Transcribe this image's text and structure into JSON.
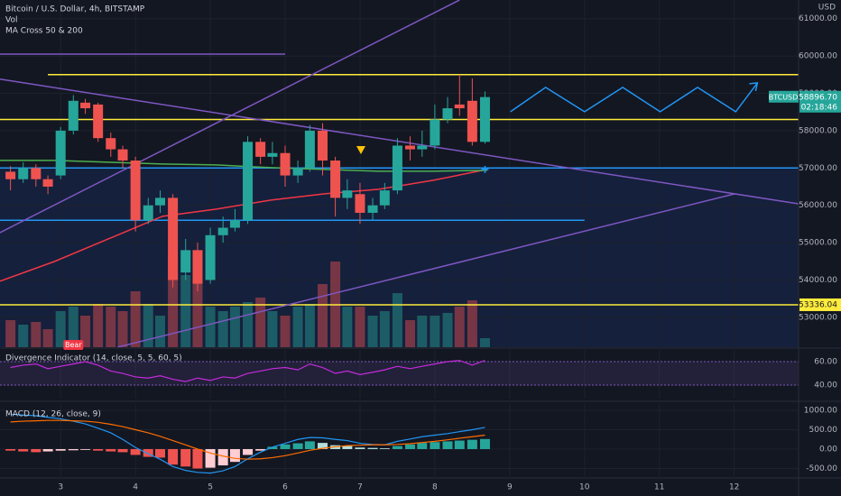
{
  "chart_data": [
    {
      "type": "candlestick",
      "title": "Bitcoin / U.S. Dollar, 4h, BITSTAMP",
      "indicator_label": "MA Cross 50 & 200",
      "currency": "USD",
      "up_color": "#26a69a",
      "down_color": "#ef5350",
      "grid": true,
      "x": [
        2.33,
        2.5,
        2.67,
        2.83,
        3,
        3.17,
        3.33,
        3.5,
        3.67,
        3.83,
        4,
        4.17,
        4.33,
        4.5,
        4.67,
        4.83,
        5,
        5.17,
        5.33,
        5.5,
        5.67,
        5.83,
        6,
        6.17,
        6.33,
        6.5,
        6.67,
        6.83,
        7,
        7.17,
        7.33,
        7.5,
        7.67,
        7.83,
        8,
        8.17,
        8.33,
        8.5,
        8.67
      ],
      "open": [
        56900,
        56700,
        57000,
        56700,
        56800,
        58000,
        58750,
        58700,
        57800,
        57500,
        57200,
        55600,
        56000,
        56200,
        54200,
        54800,
        54000,
        55200,
        55400,
        55600,
        57700,
        57300,
        57400,
        56800,
        57000,
        58000,
        57200,
        56200,
        56300,
        55800,
        56000,
        56400,
        57600,
        57500,
        57600,
        58300,
        58700,
        58800,
        57700
      ],
      "high": [
        57050,
        57150,
        57100,
        56800,
        58100,
        58950,
        58850,
        58750,
        57950,
        57600,
        57300,
        56200,
        56400,
        56300,
        55100,
        55000,
        55400,
        55700,
        55900,
        57850,
        57800,
        57700,
        57600,
        57200,
        58150,
        58200,
        57300,
        56700,
        56600,
        56200,
        56600,
        57800,
        57850,
        58000,
        58700,
        58900,
        59500,
        59400,
        59050
      ],
      "low": [
        56400,
        56600,
        56500,
        56300,
        56700,
        57900,
        58450,
        57700,
        57300,
        57000,
        55300,
        55500,
        55800,
        53800,
        54000,
        53700,
        53900,
        55000,
        55300,
        55500,
        57100,
        57100,
        56500,
        56600,
        56900,
        56800,
        55700,
        55900,
        55500,
        55600,
        55900,
        56300,
        57200,
        57300,
        57500,
        58200,
        58400,
        57600,
        57650
      ],
      "close": [
        56700,
        57000,
        56700,
        56500,
        58000,
        58800,
        58600,
        57800,
        57500,
        57200,
        55600,
        56000,
        56200,
        54000,
        54800,
        53900,
        55200,
        55400,
        55600,
        57700,
        57300,
        57400,
        56800,
        57000,
        58000,
        57200,
        56200,
        56400,
        55800,
        56000,
        56400,
        57600,
        57500,
        57600,
        58300,
        58600,
        58600,
        57700,
        58900
      ],
      "xlim": [
        2.19,
        12.86
      ],
      "xticks": [
        3,
        4,
        5,
        6,
        7,
        8,
        9,
        10,
        11,
        12
      ],
      "ylim": [
        52200,
        61500
      ],
      "yticks": [
        {
          "value": 53000,
          "label": "53000.00"
        },
        {
          "value": 54000,
          "label": "54000.00"
        },
        {
          "value": 55000,
          "label": "55000.00"
        },
        {
          "value": 56000,
          "label": "56000.00"
        },
        {
          "value": 57000,
          "label": "57000.00"
        },
        {
          "value": 58000,
          "label": "58000.00"
        },
        {
          "value": 59000,
          "label": "59000.00"
        },
        {
          "value": 60000,
          "label": "60000.00"
        },
        {
          "value": 61000,
          "label": "61000.00"
        }
      ],
      "ma_lines": [
        {
          "color": "#f23645",
          "x": [
            2.19,
            2.92,
            3.64,
            4.36,
            5.08,
            5.81,
            6.53,
            7.25,
            7.98,
            8.7
          ],
          "values": [
            53967,
            54498,
            55102,
            55706,
            55899,
            56140,
            56310,
            56430,
            56672,
            56962
          ]
        },
        {
          "color": "#4caf50",
          "x": [
            2.19,
            2.92,
            3.64,
            4.36,
            5.08,
            5.81,
            6.53,
            7.25,
            7.98,
            8.7
          ],
          "values": [
            57203,
            57203,
            57155,
            57106,
            57082,
            57010,
            56962,
            56913,
            56913,
            56937
          ]
        }
      ],
      "lines": [
        {
          "color": "#ffeb3b",
          "points": [
            [
              2.83,
              59500
            ],
            [
              12.86,
              59500
            ]
          ]
        },
        {
          "color": "#ffeb3b",
          "points": [
            [
              2.19,
              58300
            ],
            [
              12.86,
              58300
            ]
          ]
        },
        {
          "color": "#ffeb3b",
          "points": [
            [
              2.19,
              53336.04
            ],
            [
              12.86,
              53336.04
            ]
          ]
        },
        {
          "color": "#2196f3",
          "points": [
            [
              2.19,
              57000
            ],
            [
              12.86,
              57000
            ]
          ]
        },
        {
          "color": "#2196f3",
          "points": [
            [
              2.19,
              55600
            ],
            [
              10.0,
              55600
            ]
          ]
        },
        {
          "color": "#7e57c2",
          "points": [
            [
              2.19,
              60050
            ],
            [
              6.0,
              60050
            ]
          ]
        },
        {
          "color": "#7e57c2",
          "points": [
            [
              2.19,
              59380
            ],
            [
              12.86,
              56040
            ]
          ]
        },
        {
          "color": "#7e57c2",
          "points": [
            [
              2.19,
              55270
            ],
            [
              8.33,
              61500
            ]
          ]
        },
        {
          "color": "#7e57c2",
          "points": [
            [
              3.76,
              52200
            ],
            [
              12.01,
              56310
            ]
          ]
        },
        {
          "color": "#2196f3",
          "points": [
            [
              9.01,
              58507
            ],
            [
              9.48,
              59159
            ],
            [
              10.0,
              58507
            ],
            [
              10.51,
              59159
            ],
            [
              11.01,
              58507
            ],
            [
              11.51,
              59159
            ],
            [
              12.02,
              58507
            ],
            [
              12.31,
              59280
            ]
          ]
        }
      ],
      "symbol": "BTCUSD",
      "last_price": {
        "value": 58896.7,
        "label": "58896.70"
      },
      "countdown": "02:18:46",
      "level_tag": {
        "value": 53336.04,
        "label": "53336.04",
        "color": "#ffeb3b"
      }
    },
    {
      "type": "bar",
      "title": "Vol",
      "ylim": [
        0,
        385
      ],
      "values": [
        30,
        25,
        28,
        20,
        40,
        45,
        35,
        48,
        45,
        40,
        62,
        48,
        35,
        100,
        80,
        75,
        45,
        40,
        45,
        50,
        55,
        40,
        35,
        45,
        48,
        70,
        95,
        45,
        45,
        35,
        40,
        60,
        30,
        35,
        35,
        38,
        45,
        52,
        10
      ]
    },
    {
      "type": "line",
      "title": "Divergence Indicator (14, close, 5, 5, 60, 5)",
      "color": "#c42bdc",
      "band": [
        40,
        60
      ],
      "band_color": "#7e57c2",
      "values": [
        55,
        57,
        58,
        54,
        56,
        58,
        60,
        57,
        52,
        50,
        47,
        46,
        48,
        45,
        43,
        46,
        44,
        47,
        46,
        50,
        52,
        54,
        55,
        53,
        58,
        55,
        50,
        52,
        49,
        51,
        53,
        56,
        54,
        56,
        58,
        60,
        61,
        57,
        61
      ],
      "ylim": [
        28.5,
        70
      ],
      "yticks": [
        {
          "value": 40,
          "label": "40.00"
        },
        {
          "value": 60,
          "label": "60.00"
        }
      ],
      "annotations": [
        {
          "x": 3.17,
          "label": "Bear",
          "color": "#f23645"
        }
      ]
    },
    {
      "type": "macd",
      "title": "MACD (12, 26, close, 9)",
      "histogram": [
        -40,
        -60,
        -80,
        -60,
        -40,
        -30,
        -20,
        -40,
        -60,
        -80,
        -150,
        -200,
        -220,
        -400,
        -450,
        -500,
        -480,
        -420,
        -330,
        -150,
        -40,
        60,
        120,
        150,
        200,
        160,
        100,
        80,
        40,
        30,
        20,
        80,
        120,
        160,
        180,
        200,
        220,
        240,
        260
      ],
      "histogram_colors": [
        "#26a69a",
        "#b2dfdb",
        "#ef5350",
        "#ffcdd2"
      ],
      "series": [
        {
          "color": "#2196f3",
          "values": [
            900,
            880,
            860,
            820,
            780,
            720,
            650,
            540,
            420,
            250,
            40,
            -120,
            -260,
            -450,
            -550,
            -600,
            -620,
            -560,
            -450,
            -250,
            -80,
            50,
            150,
            250,
            300,
            290,
            250,
            220,
            150,
            120,
            110,
            200,
            260,
            320,
            360,
            400,
            450,
            500,
            560
          ]
        },
        {
          "color": "#ff6d00",
          "values": [
            700,
            720,
            730,
            740,
            740,
            730,
            720,
            690,
            640,
            580,
            500,
            420,
            330,
            220,
            110,
            0,
            -100,
            -180,
            -240,
            -260,
            -250,
            -220,
            -170,
            -100,
            -30,
            20,
            60,
            90,
            100,
            110,
            110,
            120,
            140,
            170,
            200,
            240,
            280,
            320,
            360
          ]
        }
      ],
      "ylim": [
        -698,
        1163
      ],
      "yticks": [
        {
          "value": -500,
          "label": "-500.00"
        },
        {
          "value": 0,
          "label": "0.00"
        },
        {
          "value": 500,
          "label": "500.00"
        },
        {
          "value": 1000,
          "label": "1000.00"
        }
      ]
    }
  ]
}
